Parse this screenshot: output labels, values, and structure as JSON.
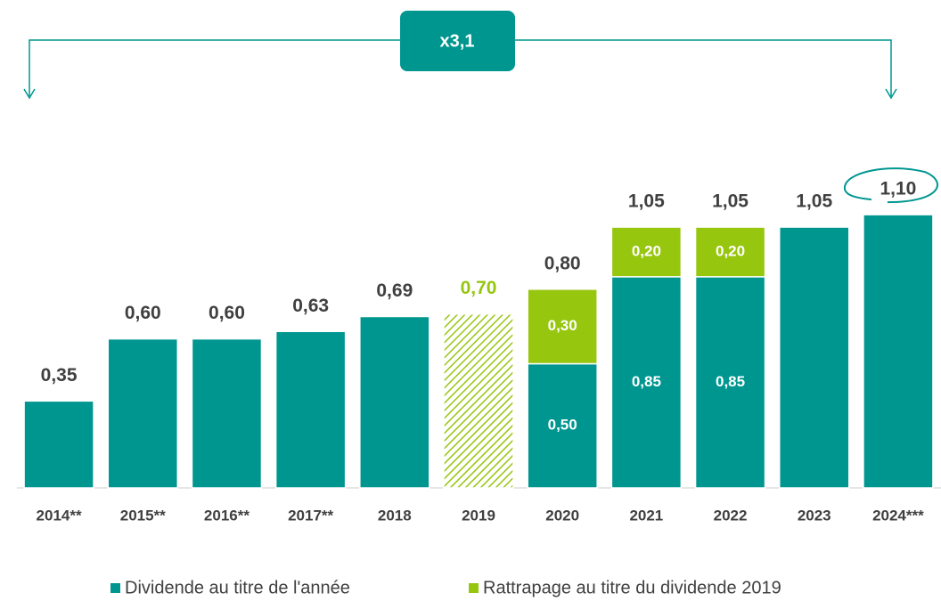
{
  "chart_data": {
    "type": "stacked_bar",
    "annotation": "x3,1",
    "categories": [
      "2014**",
      "2015**",
      "2016**",
      "2017**",
      "2018",
      "2019",
      "2020",
      "2021",
      "2022",
      "2023",
      "2024***"
    ],
    "series": [
      {
        "name": "Dividende au titre de l'année",
        "color": "#009690",
        "values": [
          0.35,
          0.6,
          0.6,
          0.63,
          0.69,
          null,
          0.5,
          0.85,
          0.85,
          1.05,
          1.1
        ],
        "value_labels": [
          null,
          null,
          null,
          null,
          null,
          null,
          "0,50",
          "0,85",
          "0,85",
          null,
          null
        ]
      },
      {
        "name": "Rattrapage au titre du dividende 2019",
        "color": "#97c60f",
        "values": [
          null,
          null,
          null,
          null,
          null,
          0.7,
          0.3,
          0.2,
          0.2,
          null,
          null
        ],
        "value_labels": [
          null,
          null,
          null,
          null,
          null,
          null,
          "0,30",
          "0,20",
          "0,20",
          null,
          null
        ]
      }
    ],
    "totals": [
      0.35,
      0.6,
      0.6,
      0.63,
      0.69,
      0.7,
      0.8,
      1.05,
      1.05,
      1.05,
      1.1
    ],
    "total_labels": [
      "0,35",
      "0,60",
      "0,60",
      "0,63",
      "0,69",
      "0,70",
      "0,80",
      "1,05",
      "1,05",
      "1,05",
      "1,10"
    ],
    "hatched": [
      5
    ],
    "highlighted": [
      10
    ],
    "ylim": [
      0,
      1.2
    ]
  }
}
